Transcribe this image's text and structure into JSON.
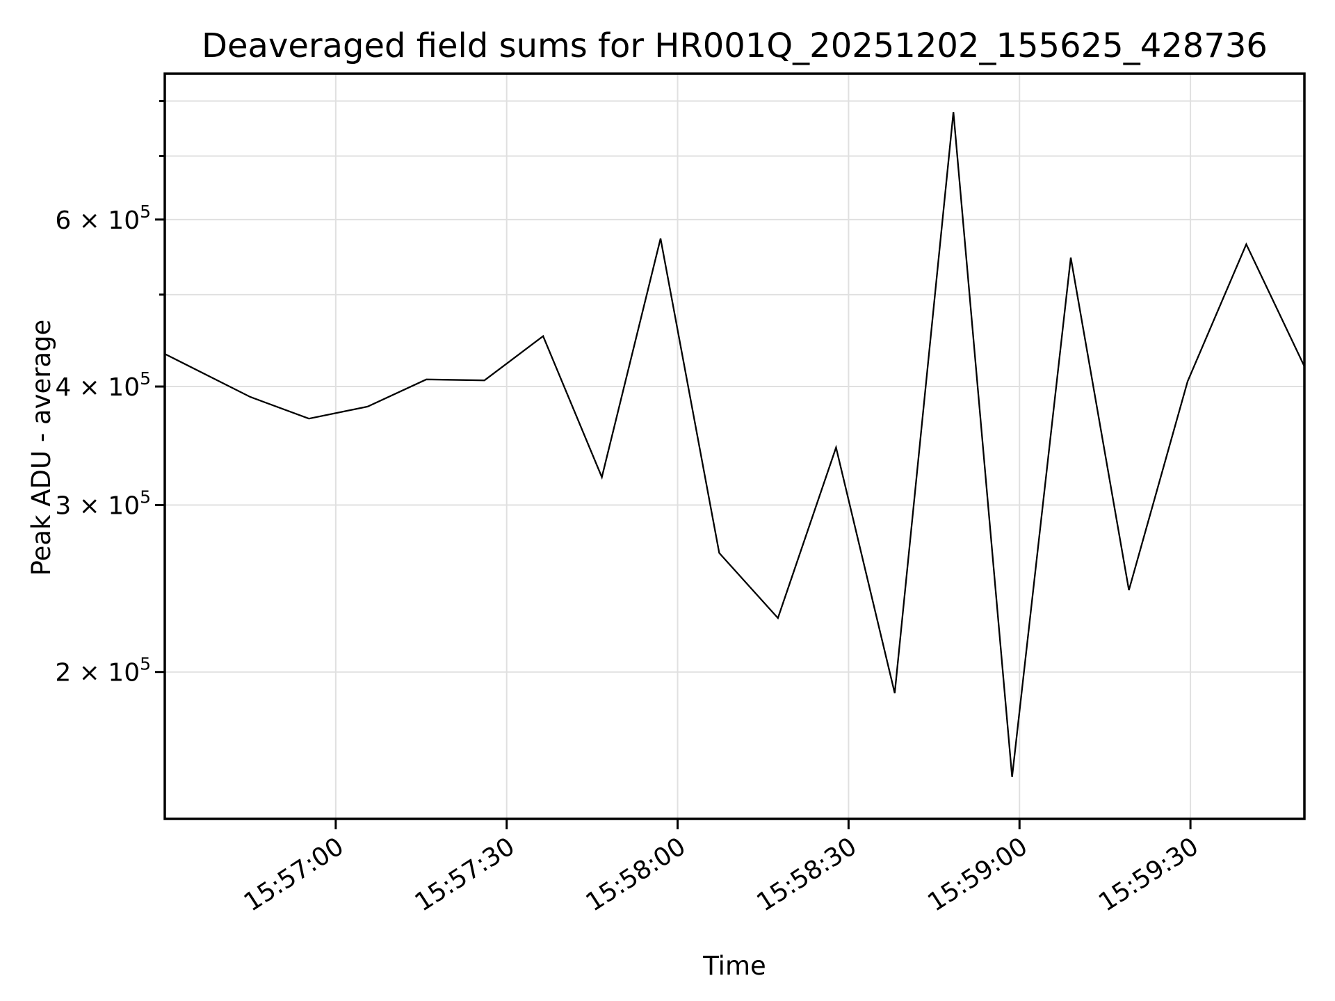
{
  "chart_data": {
    "type": "line",
    "title": "Deaveraged field sums for HR001Q_20251202_155625_428736",
    "xlabel": "Time",
    "ylabel": "Peak ADU - average",
    "y_scale": "log",
    "ylim": [
      140000,
      855000
    ],
    "x_start": "15:56:30",
    "x_end": "15:59:50",
    "x_span_seconds": 200,
    "grid": "on",
    "grid_color": "#e0e0e0",
    "line_color": "#000000",
    "background_color": "#ffffff",
    "x_ticks": {
      "labels": [
        "15:57:00",
        "15:57:30",
        "15:58:00",
        "15:58:30",
        "15:59:00",
        "15:59:30"
      ],
      "offsets_s": [
        30,
        60,
        90,
        120,
        150,
        180
      ],
      "rotation_deg": -33
    },
    "y_ticks": {
      "labeled_values": [
        200000,
        300000,
        400000,
        600000
      ],
      "labeled_display": [
        "2 × 10⁵",
        "3 × 10⁵",
        "4 × 10⁵",
        "6 × 10⁵"
      ],
      "unlabeled_values": [
        500000,
        700000,
        800000
      ],
      "exponent": 5
    },
    "series": [
      {
        "name": "Peak ADU - average",
        "x": [
          "15:56:30",
          "15:56:45",
          "15:56:55",
          "15:57:06",
          "15:57:16",
          "15:57:26",
          "15:57:36",
          "15:57:47",
          "15:57:57",
          "15:58:07",
          "15:58:18",
          "15:58:28",
          "15:58:38",
          "15:58:48",
          "15:58:59",
          "15:59:09",
          "15:59:19",
          "15:59:30",
          "15:59:40",
          "15:59:50"
        ],
        "x_offsets_s": [
          0,
          15,
          25.3,
          35.6,
          45.9,
          56.1,
          66.4,
          76.7,
          87.0,
          97.3,
          107.6,
          117.8,
          128.1,
          138.4,
          148.7,
          159.0,
          169.2,
          179.5,
          189.8,
          200
        ],
        "values": [
          433000,
          390000,
          370000,
          381000,
          407000,
          406000,
          452000,
          321000,
          573000,
          267000,
          228000,
          345000,
          190000,
          779000,
          155000,
          547000,
          244000,
          405000,
          565000,
          420000
        ]
      }
    ]
  }
}
